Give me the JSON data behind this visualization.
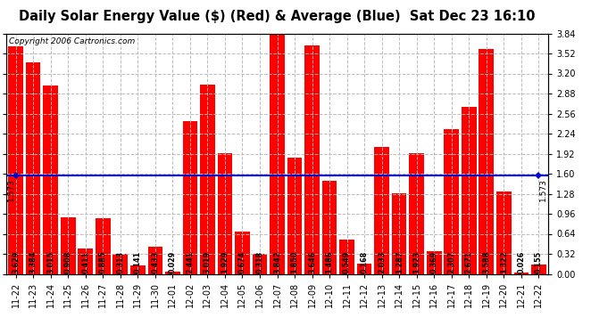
{
  "title": "Daily Solar Energy Value ($) (Red) & Average (Blue)  Sat Dec 23 16:10",
  "copyright": "Copyright 2006 Cartronics.com",
  "average": 1.573,
  "categories": [
    "11-22",
    "11-23",
    "11-24",
    "11-25",
    "11-26",
    "11-27",
    "11-28",
    "11-29",
    "11-30",
    "12-01",
    "12-02",
    "12-03",
    "12-04",
    "12-05",
    "12-06",
    "12-07",
    "12-08",
    "12-09",
    "12-10",
    "12-11",
    "12-12",
    "12-13",
    "12-14",
    "12-15",
    "12-16",
    "12-17",
    "12-18",
    "12-19",
    "12-20",
    "12-21",
    "12-22"
  ],
  "values": [
    3.629,
    3.384,
    3.015,
    0.908,
    0.411,
    0.885,
    0.313,
    0.141,
    0.433,
    0.029,
    2.441,
    3.019,
    1.929,
    0.674,
    0.318,
    3.842,
    1.85,
    3.646,
    1.486,
    0.549,
    0.168,
    2.033,
    1.287,
    1.923,
    0.369,
    2.307,
    2.671,
    3.588,
    1.322,
    0.026,
    0.155
  ],
  "bar_color": "#ff0000",
  "avg_line_color": "#0000cc",
  "background_color": "#ffffff",
  "plot_bg_color": "#ffffff",
  "grid_color": "#bbbbbb",
  "ylim": [
    0.0,
    3.84
  ],
  "yticks": [
    0.0,
    0.32,
    0.64,
    0.96,
    1.28,
    1.6,
    1.92,
    2.24,
    2.56,
    2.88,
    3.2,
    3.52,
    3.84
  ],
  "title_fontsize": 10.5,
  "copyright_fontsize": 6.5,
  "label_fontsize": 5.8,
  "tick_fontsize": 7,
  "avg_label_fontsize": 6.5
}
